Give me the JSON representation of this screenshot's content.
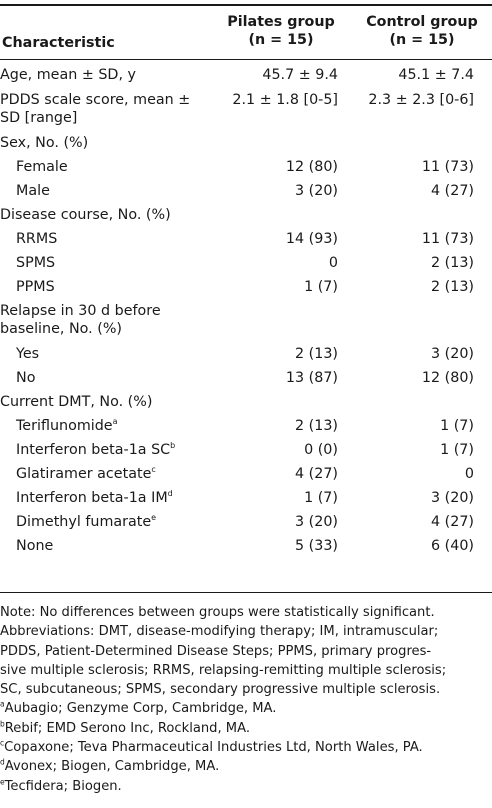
{
  "header": {
    "characteristic": "Characteristic",
    "pilates_line1": "Pilates group",
    "pilates_line2": "(n = 15)",
    "control_line1": "Control group",
    "control_line2": "(n = 15)"
  },
  "rows": {
    "age": {
      "label": "Age, mean ± SD, y",
      "pilates": "45.7 ± 9.4",
      "control": "45.1 ± 7.4"
    },
    "pdds": {
      "label_line1": "PDDS scale score, mean ±",
      "label_line2": "SD [range]",
      "pilates": "2.1 ± 1.8 [0-5]",
      "control": "2.3 ± 2.3 [0-6]"
    },
    "sex": {
      "label": "Sex, No. (%)"
    },
    "female": {
      "label": "Female",
      "pilates": "12 (80)",
      "control": "11 (73)"
    },
    "male": {
      "label": "Male",
      "pilates": "3 (20)",
      "control": "4 (27)"
    },
    "course": {
      "label": "Disease course, No. (%)"
    },
    "rrms": {
      "label": "RRMS",
      "pilates": "14 (93)",
      "control": "11 (73)"
    },
    "spms": {
      "label": "SPMS",
      "pilates": "0",
      "control": "2 (13)"
    },
    "ppms": {
      "label": "PPMS",
      "pilates": "1 (7)",
      "control": "2 (13)"
    },
    "relapse": {
      "label_line1": "Relapse in 30 d before",
      "label_line2": "baseline, No. (%)"
    },
    "yes": {
      "label": "Yes",
      "pilates": "2 (13)",
      "control": "3 (20)"
    },
    "no": {
      "label": "No",
      "pilates": "13 (87)",
      "control": "12 (80)"
    },
    "dmt": {
      "label": "Current DMT, No. (%)"
    },
    "teri": {
      "label": "Teriflunomide",
      "sup": "a",
      "pilates": "2 (13)",
      "control": "1 (7)"
    },
    "ifnsc": {
      "label": "Interferon beta-1a SC",
      "sup": "b",
      "pilates": "0 (0)",
      "control": "1 (7)"
    },
    "glat": {
      "label": "Glatiramer acetate",
      "sup": "c",
      "pilates": "4 (27)",
      "control": "0"
    },
    "ifnim": {
      "label": "Interferon beta-1a IM",
      "sup": "d",
      "pilates": "1 (7)",
      "control": "3 (20)"
    },
    "dmf": {
      "label": "Dimethyl fumarate",
      "sup": "e",
      "pilates": "3 (20)",
      "control": "4 (27)"
    },
    "none": {
      "label": "None",
      "pilates": "5 (33)",
      "control": "6 (40)"
    }
  },
  "notes": {
    "n1": "Note: No differences between groups were statistically significant.",
    "n2": "Abbreviations: DMT, disease-modifying therapy; IM, intramuscular;",
    "n3": "PDDS, Patient-Determined Disease Steps; PPMS, primary progres-",
    "n4": "sive multiple sclerosis; RRMS, relapsing-remitting multiple sclerosis;",
    "n5": "SC, subcutaneous; SPMS, secondary progressive multiple sclerosis.",
    "fa_mark": "a",
    "fa": "Aubagio; Genzyme Corp, Cambridge, MA.",
    "fb_mark": "b",
    "fb": "Rebif; EMD Serono Inc, Rockland, MA.",
    "fc_mark": "c",
    "fc": "Copaxone; Teva Pharmaceutical Industries Ltd, North Wales, PA.",
    "fd_mark": "d",
    "fd": "Avonex; Biogen, Cambridge, MA.",
    "fe_mark": "e",
    "fe": "Tecfidera; Biogen."
  }
}
